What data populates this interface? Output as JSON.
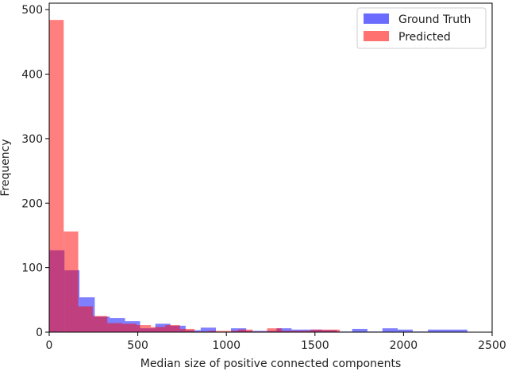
{
  "chart_data": {
    "type": "histogram",
    "xlabel": "Median size of positive connected components",
    "ylabel": "Frequency",
    "xlim": [
      0,
      2500
    ],
    "ylim": [
      0,
      510
    ],
    "xticks": [
      0,
      500,
      1000,
      1500,
      2000,
      2500
    ],
    "yticks": [
      0,
      100,
      200,
      300,
      400,
      500
    ],
    "grid": false,
    "legend": {
      "position": "top-right",
      "entries": [
        {
          "label": "Ground Truth",
          "color": "#6b6bff"
        },
        {
          "label": "Predicted",
          "color": "#ff7070"
        }
      ]
    },
    "series": [
      {
        "name": "Ground Truth",
        "color": "#0000ff",
        "alpha": 0.5,
        "bins": [
          [
            0,
            86,
            127
          ],
          [
            86,
            171,
            96
          ],
          [
            171,
            257,
            54
          ],
          [
            257,
            342,
            24
          ],
          [
            342,
            428,
            22
          ],
          [
            428,
            513,
            17
          ],
          [
            513,
            599,
            6
          ],
          [
            599,
            684,
            13
          ],
          [
            684,
            770,
            10
          ],
          [
            770,
            855,
            3
          ],
          [
            855,
            941,
            7
          ],
          [
            941,
            1026,
            0
          ],
          [
            1026,
            1112,
            6
          ],
          [
            1112,
            1197,
            2
          ],
          [
            1197,
            1283,
            2
          ],
          [
            1283,
            1368,
            6
          ],
          [
            1368,
            1454,
            4
          ],
          [
            1454,
            1539,
            4
          ],
          [
            1539,
            1625,
            3
          ],
          [
            1625,
            1710,
            1
          ],
          [
            1710,
            1796,
            5
          ],
          [
            1796,
            1881,
            1
          ],
          [
            1881,
            1967,
            6
          ],
          [
            1967,
            2052,
            4
          ],
          [
            2052,
            2138,
            1
          ],
          [
            2138,
            2223,
            4
          ],
          [
            2223,
            2309,
            4
          ],
          [
            2309,
            2360,
            4
          ]
        ]
      },
      {
        "name": "Predicted",
        "color": "#ff0000",
        "alpha": 0.5,
        "bins": [
          [
            0,
            82,
            484
          ],
          [
            82,
            164,
            156
          ],
          [
            164,
            246,
            40
          ],
          [
            246,
            328,
            25
          ],
          [
            328,
            410,
            14
          ],
          [
            410,
            492,
            13
          ],
          [
            492,
            574,
            11
          ],
          [
            574,
            656,
            8
          ],
          [
            656,
            738,
            11
          ],
          [
            738,
            820,
            5
          ],
          [
            820,
            902,
            1
          ],
          [
            902,
            984,
            2
          ],
          [
            984,
            1066,
            2
          ],
          [
            1066,
            1148,
            4
          ],
          [
            1148,
            1230,
            1
          ],
          [
            1230,
            1312,
            6
          ],
          [
            1312,
            1394,
            2
          ],
          [
            1394,
            1476,
            2
          ],
          [
            1476,
            1558,
            4
          ],
          [
            1558,
            1640,
            4
          ]
        ]
      }
    ]
  }
}
